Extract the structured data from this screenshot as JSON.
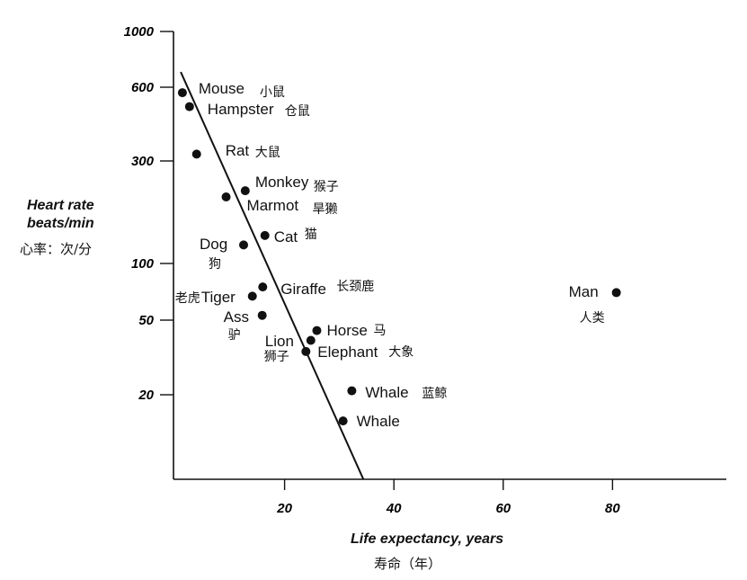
{
  "chart_data": {
    "type": "scatter",
    "title": "",
    "xlabel": "Life expectancy, years",
    "xlabel_zh": "寿命（年）",
    "ylabel": "Heart rate beats/min",
    "ylabel_line1": "Heart rate",
    "ylabel_line2": "beats/min",
    "ylabel_zh": "心率：次/分",
    "yscale": "log",
    "xlim": [
      0,
      100
    ],
    "ylim": [
      7,
      1000
    ],
    "xticks": [
      20,
      40,
      60,
      80
    ],
    "yticks": [
      1000,
      600,
      300,
      100,
      50,
      20
    ],
    "grid": false,
    "points": [
      {
        "name": "Mouse",
        "zh": "小鼠",
        "x": 1.3,
        "y": 570
      },
      {
        "name": "Hampster",
        "zh": "仓鼠",
        "x": 2.6,
        "y": 500
      },
      {
        "name": "Rat",
        "zh": "大鼠",
        "x": 3.9,
        "y": 320
      },
      {
        "name": "Monkey",
        "zh": "猴子",
        "x": 12.8,
        "y": 218
      },
      {
        "name": "Marmot",
        "zh": "旱獭",
        "x": 9.3,
        "y": 204
      },
      {
        "name": "Cat",
        "zh": "猫",
        "x": 16.4,
        "y": 135
      },
      {
        "name": "Dog",
        "zh": "狗",
        "x": 12.5,
        "y": 122
      },
      {
        "name": "Giraffe",
        "zh": "长颈鹿",
        "x": 16.0,
        "y": 75
      },
      {
        "name": "Tiger",
        "zh": "老虎",
        "x": 14.1,
        "y": 67
      },
      {
        "name": "Ass",
        "zh": "驴",
        "x": 15.9,
        "y": 53
      },
      {
        "name": "Horse",
        "zh": "马",
        "x": 25.9,
        "y": 44
      },
      {
        "name": "Lion",
        "zh": "狮子",
        "x": 24.8,
        "y": 39
      },
      {
        "name": "Elephant",
        "zh": "大象",
        "x": 23.9,
        "y": 34
      },
      {
        "name": "Whale",
        "zh": "蓝鲸",
        "x": 32.3,
        "y": 21
      },
      {
        "name": "Whale",
        "zh": "",
        "x": 30.7,
        "y": 14.5
      },
      {
        "name": "Man",
        "zh": "人类",
        "x": 80.7,
        "y": 70
      }
    ],
    "trend_line": {
      "x": [
        1.0,
        34.4
      ],
      "y": [
        690,
        7.1
      ]
    }
  }
}
